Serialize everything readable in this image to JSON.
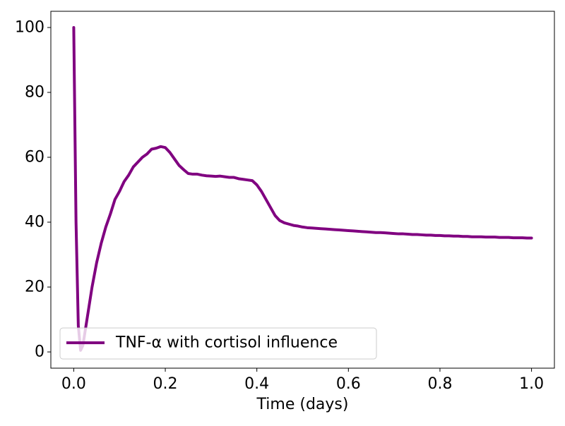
{
  "chart_data": {
    "type": "line",
    "title": "",
    "xlabel": "Time (days)",
    "ylabel": "",
    "xlim": [
      -0.05,
      1.05
    ],
    "ylim": [
      -5,
      105
    ],
    "xticks": [
      0.0,
      0.2,
      0.4,
      0.6,
      0.8,
      1.0
    ],
    "xtick_labels": [
      "0.0",
      "0.2",
      "0.4",
      "0.6",
      "0.8",
      "1.0"
    ],
    "yticks": [
      0,
      20,
      40,
      60,
      80,
      100
    ],
    "ytick_labels": [
      "0",
      "20",
      "40",
      "60",
      "80",
      "100"
    ],
    "grid": false,
    "legend_position": "lower-left",
    "series": [
      {
        "name": "TNF-α with cortisol influence",
        "color": "#800080",
        "x": [
          0.0,
          0.005,
          0.01,
          0.015,
          0.02,
          0.025,
          0.03,
          0.04,
          0.05,
          0.06,
          0.07,
          0.08,
          0.09,
          0.1,
          0.11,
          0.12,
          0.13,
          0.14,
          0.15,
          0.16,
          0.17,
          0.18,
          0.19,
          0.2,
          0.21,
          0.22,
          0.23,
          0.24,
          0.25,
          0.26,
          0.27,
          0.28,
          0.29,
          0.3,
          0.31,
          0.32,
          0.33,
          0.34,
          0.35,
          0.36,
          0.37,
          0.38,
          0.39,
          0.4,
          0.41,
          0.42,
          0.43,
          0.44,
          0.45,
          0.46,
          0.47,
          0.48,
          0.49,
          0.5,
          0.51,
          0.52,
          0.53,
          0.54,
          0.55,
          0.56,
          0.57,
          0.58,
          0.59,
          0.6,
          0.61,
          0.62,
          0.63,
          0.64,
          0.65,
          0.66,
          0.67,
          0.68,
          0.69,
          0.7,
          0.71,
          0.72,
          0.73,
          0.74,
          0.75,
          0.76,
          0.77,
          0.78,
          0.79,
          0.8,
          0.81,
          0.82,
          0.83,
          0.84,
          0.85,
          0.86,
          0.87,
          0.88,
          0.89,
          0.9,
          0.91,
          0.92,
          0.93,
          0.94,
          0.95,
          0.96,
          0.97,
          0.98,
          0.99,
          1.0
        ],
        "y": [
          100.0,
          40.0,
          8.0,
          0.5,
          2.0,
          6.5,
          11.0,
          20.0,
          27.5,
          33.5,
          38.5,
          42.5,
          47.0,
          49.5,
          52.5,
          54.5,
          57.0,
          58.5,
          60.0,
          61.0,
          62.5,
          62.8,
          63.3,
          63.0,
          61.5,
          59.5,
          57.5,
          56.2,
          55.0,
          54.8,
          54.8,
          54.5,
          54.3,
          54.2,
          54.1,
          54.2,
          54.0,
          53.8,
          53.8,
          53.4,
          53.2,
          53.0,
          52.8,
          51.5,
          49.5,
          47.0,
          44.5,
          42.0,
          40.5,
          39.8,
          39.4,
          39.0,
          38.8,
          38.5,
          38.3,
          38.2,
          38.1,
          38.0,
          37.9,
          37.8,
          37.7,
          37.6,
          37.5,
          37.4,
          37.3,
          37.2,
          37.1,
          37.0,
          36.9,
          36.8,
          36.8,
          36.7,
          36.6,
          36.5,
          36.4,
          36.4,
          36.3,
          36.2,
          36.2,
          36.1,
          36.0,
          36.0,
          35.9,
          35.9,
          35.8,
          35.8,
          35.7,
          35.7,
          35.6,
          35.6,
          35.5,
          35.5,
          35.5,
          35.4,
          35.4,
          35.4,
          35.3,
          35.3,
          35.3,
          35.2,
          35.2,
          35.2,
          35.1,
          35.1
        ]
      }
    ]
  }
}
